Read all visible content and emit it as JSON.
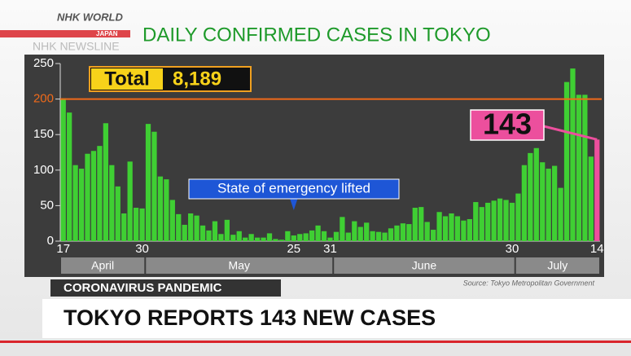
{
  "header": {
    "logo": "NHK WORLD",
    "logo_sub": "JAPAN",
    "program": "NHK NEWSLINE"
  },
  "chart_data": {
    "type": "bar",
    "title": "DAILY CONFIRMED CASES IN TOKYO",
    "total_label": "Total",
    "total": "8,189",
    "categories": [
      "17",
      null,
      null,
      null,
      null,
      null,
      null,
      null,
      null,
      null,
      null,
      null,
      null,
      "30",
      null,
      null,
      null,
      null,
      null,
      null,
      null,
      null,
      null,
      null,
      null,
      null,
      null,
      null,
      null,
      null,
      null,
      null,
      null,
      null,
      null,
      null,
      null,
      null,
      "25",
      null,
      null,
      null,
      null,
      null,
      "31",
      null,
      null,
      null,
      null,
      null,
      null,
      null,
      null,
      null,
      null,
      null,
      null,
      null,
      null,
      null,
      null,
      null,
      null,
      null,
      null,
      null,
      null,
      null,
      null,
      null,
      null,
      null,
      null,
      null,
      "30",
      null,
      null,
      null,
      null,
      null,
      null,
      null,
      null,
      null,
      null,
      null,
      null,
      null,
      "14"
    ],
    "months": [
      "April",
      "May",
      "June",
      "July"
    ],
    "values": [
      201,
      181,
      107,
      102,
      123,
      127,
      134,
      166,
      107,
      77,
      39,
      112,
      47,
      46,
      165,
      154,
      91,
      87,
      58,
      38,
      23,
      39,
      36,
      22,
      15,
      28,
      10,
      30,
      9,
      14,
      5,
      10,
      5,
      5,
      11,
      3,
      2,
      14,
      8,
      10,
      11,
      15,
      22,
      14,
      5,
      13,
      34,
      12,
      28,
      20,
      26,
      14,
      13,
      12,
      18,
      22,
      25,
      24,
      47,
      48,
      27,
      16,
      41,
      35,
      39,
      35,
      29,
      31,
      55,
      48,
      54,
      57,
      60,
      58,
      54,
      67,
      107,
      124,
      131,
      111,
      102,
      106,
      75,
      224,
      243,
      206,
      206,
      119,
      143
    ],
    "color": "#3fcf33",
    "highlight_color": "#ec4f9d",
    "ylim": [
      0,
      250
    ],
    "yticks": [
      0,
      50,
      100,
      150,
      200,
      250
    ],
    "reference_line": 200,
    "reference_color": "#f06a1a",
    "annotation": "State of emergency lifted",
    "source": "Source: Tokyo Metropolitan Government"
  },
  "footer": {
    "topic": "CORONAVIRUS PANDEMIC",
    "headline": "TOKYO REPORTS 143 NEW CASES"
  }
}
